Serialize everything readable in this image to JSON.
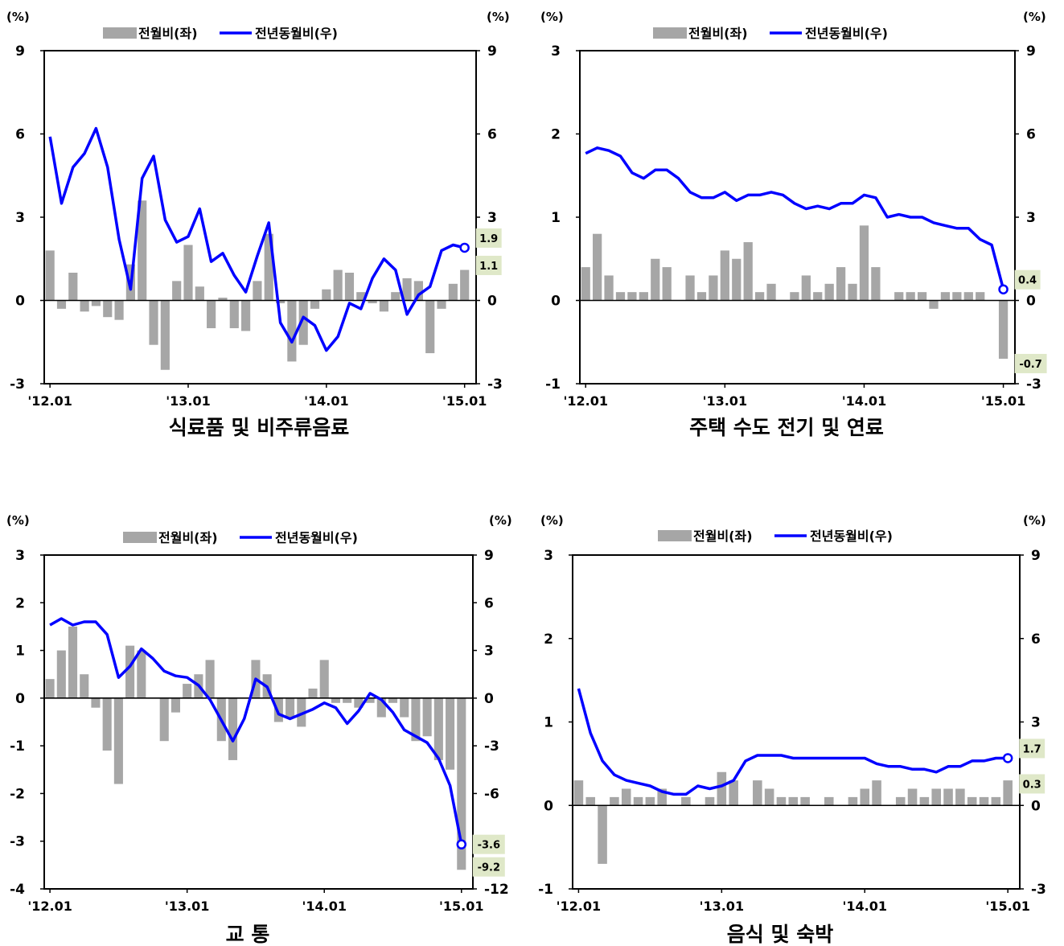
{
  "colors": {
    "bar": "#a6a6a6",
    "line": "#0000ff",
    "callout_bg": "#dfe8c8",
    "axis": "#000000"
  },
  "x_tick_labels": [
    "'12.01",
    "'13.01",
    "'14.01",
    "'15.01"
  ],
  "chart_data": [
    {
      "type": "bar",
      "title": "식료품 및 비주류음료",
      "left_unit": "(%)",
      "right_unit": "(%)",
      "legend": [
        {
          "label": "전월비(좌)",
          "kind": "bar"
        },
        {
          "label": "전년동월비(우)",
          "kind": "line"
        }
      ],
      "xlabels": [
        "'12.01",
        "'13.01",
        "'14.01",
        "'15.01"
      ],
      "left_ticks": [
        "9",
        "6",
        "3",
        "0",
        "-3"
      ],
      "right_ticks": [
        "9",
        "6",
        "3",
        "0",
        "-3"
      ],
      "ylim_left": [
        -3,
        9
      ],
      "ylim_right": [
        -3,
        9
      ],
      "series": [
        {
          "name": "전월비(좌)",
          "axis": "left",
          "values": [
            1.8,
            -0.3,
            1.0,
            -0.4,
            -0.2,
            -0.6,
            -0.7,
            1.3,
            3.6,
            -1.6,
            -2.5,
            0.7,
            2.0,
            0.5,
            -1.0,
            0.1,
            -1.0,
            -1.1,
            0.7,
            2.4,
            -0.1,
            -2.2,
            -1.6,
            -0.3,
            0.4,
            1.1,
            1.0,
            0.3,
            -0.1,
            -0.4,
            0.3,
            0.8,
            0.7,
            -1.9,
            -0.3,
            0.6,
            1.1
          ]
        },
        {
          "name": "전년동월비(우)",
          "axis": "right",
          "values": [
            5.9,
            3.5,
            4.8,
            5.3,
            6.2,
            4.8,
            2.2,
            0.4,
            4.4,
            5.2,
            2.9,
            2.1,
            2.3,
            3.3,
            1.4,
            1.7,
            0.9,
            0.3,
            1.6,
            2.8,
            -0.8,
            -1.5,
            -0.6,
            -0.9,
            -1.8,
            -1.3,
            -0.1,
            -0.3,
            0.8,
            1.5,
            1.1,
            -0.5,
            0.2,
            0.5,
            1.8,
            2.0,
            1.9
          ]
        }
      ],
      "callouts": [
        {
          "text": "1.9",
          "for": "line"
        },
        {
          "text": "1.1",
          "for": "bar"
        }
      ]
    },
    {
      "type": "bar",
      "title": "주택 수도 전기 및 연료",
      "left_unit": "(%)",
      "right_unit": "(%)",
      "legend": [
        {
          "label": "전월비(좌)",
          "kind": "bar"
        },
        {
          "label": "전년동월비(우)",
          "kind": "line"
        }
      ],
      "xlabels": [
        "'12.01",
        "'13.01",
        "'14.01",
        "'15.01"
      ],
      "left_ticks": [
        "3",
        "2",
        "1",
        "0",
        "-1"
      ],
      "right_ticks": [
        "9",
        "6",
        "3",
        "0",
        "-3"
      ],
      "ylim_left": [
        -1,
        3
      ],
      "ylim_right": [
        -3,
        9
      ],
      "series": [
        {
          "name": "전월비(좌)",
          "axis": "left",
          "values": [
            0.4,
            0.8,
            0.3,
            0.1,
            0.1,
            0.1,
            0.5,
            0.4,
            0.0,
            0.3,
            0.1,
            0.3,
            0.6,
            0.5,
            0.7,
            0.1,
            0.2,
            0.0,
            0.1,
            0.3,
            0.1,
            0.2,
            0.4,
            0.2,
            0.9,
            0.4,
            0.0,
            0.1,
            0.1,
            0.1,
            -0.1,
            0.1,
            0.1,
            0.1,
            0.1,
            0.0,
            -0.7
          ]
        },
        {
          "name": "전년동월비(우)",
          "axis": "right",
          "values": [
            5.3,
            5.5,
            5.4,
            5.2,
            4.6,
            4.4,
            4.7,
            4.7,
            4.4,
            3.9,
            3.7,
            3.7,
            3.9,
            3.6,
            3.8,
            3.8,
            3.9,
            3.8,
            3.5,
            3.3,
            3.4,
            3.3,
            3.5,
            3.5,
            3.8,
            3.7,
            3.0,
            3.1,
            3.0,
            3.0,
            2.8,
            2.7,
            2.6,
            2.6,
            2.2,
            2.0,
            0.4
          ]
        }
      ],
      "callouts": [
        {
          "text": "0.4",
          "for": "line"
        },
        {
          "text": "-0.7",
          "for": "bar"
        }
      ]
    },
    {
      "type": "bar",
      "title": "교          통",
      "left_unit": "(%)",
      "right_unit": "(%)",
      "legend": [
        {
          "label": "전월비(좌)",
          "kind": "bar"
        },
        {
          "label": "전년동월비(우)",
          "kind": "line"
        }
      ],
      "xlabels": [
        "'12.01",
        "'13.01",
        "'14.01",
        "'15.01"
      ],
      "left_ticks": [
        "3",
        "2",
        "1",
        "0",
        "-1",
        "-2",
        "-3",
        "-4"
      ],
      "right_ticks": [
        "9",
        "6",
        "3",
        "0",
        "-3",
        "-6",
        "-9",
        "-12"
      ],
      "ylim_left": [
        -4,
        3
      ],
      "ylim_right": [
        -12,
        9
      ],
      "series": [
        {
          "name": "전월비(좌)",
          "axis": "left",
          "values": [
            0.4,
            1.0,
            1.5,
            0.5,
            -0.2,
            -1.1,
            -1.8,
            1.1,
            1.0,
            0.0,
            -0.9,
            -0.3,
            0.3,
            0.5,
            0.8,
            -0.9,
            -1.3,
            0.0,
            0.8,
            0.5,
            -0.5,
            -0.4,
            -0.6,
            0.2,
            0.8,
            -0.1,
            -0.1,
            -0.2,
            -0.1,
            -0.4,
            -0.1,
            -0.4,
            -0.9,
            -0.8,
            -1.3,
            -1.5,
            -3.6
          ]
        },
        {
          "name": "전년동월비(우)",
          "axis": "right",
          "values": [
            4.6,
            5.0,
            4.6,
            4.8,
            4.8,
            4.0,
            1.3,
            2.0,
            3.1,
            2.5,
            1.7,
            1.4,
            1.3,
            0.8,
            -0.1,
            -1.4,
            -2.7,
            -1.3,
            1.2,
            0.7,
            -1.0,
            -1.3,
            -1.0,
            -0.7,
            -0.3,
            -0.6,
            -1.6,
            -0.8,
            0.3,
            -0.1,
            -0.9,
            -2.0,
            -2.4,
            -2.8,
            -3.8,
            -5.5,
            -9.2
          ]
        }
      ],
      "callouts": [
        {
          "text": "-3.6",
          "for": "bar"
        },
        {
          "text": "-9.2",
          "for": "line"
        }
      ]
    },
    {
      "type": "bar",
      "title": "음식 및 숙박",
      "left_unit": "(%)",
      "right_unit": "(%)",
      "legend": [
        {
          "label": "전월비(좌)",
          "kind": "bar"
        },
        {
          "label": "전년동월비(우)",
          "kind": "line"
        }
      ],
      "xlabels": [
        "'12.01",
        "'13.01",
        "'14.01",
        "'15.01"
      ],
      "left_ticks": [
        "3",
        "2",
        "1",
        "0",
        "-1"
      ],
      "right_ticks": [
        "9",
        "6",
        "3",
        "0",
        "-3"
      ],
      "ylim_left": [
        -1,
        3
      ],
      "ylim_right": [
        -3,
        9
      ],
      "series": [
        {
          "name": "전월비(좌)",
          "axis": "left",
          "values": [
            0.3,
            0.1,
            -0.7,
            0.1,
            0.2,
            0.1,
            0.1,
            0.2,
            0.0,
            0.1,
            0.0,
            0.1,
            0.4,
            0.3,
            0.0,
            0.3,
            0.2,
            0.1,
            0.1,
            0.1,
            0.0,
            0.1,
            0.0,
            0.1,
            0.2,
            0.3,
            0.0,
            0.1,
            0.2,
            0.1,
            0.2,
            0.2,
            0.2,
            0.1,
            0.1,
            0.1,
            0.3
          ]
        },
        {
          "name": "전년동월비(우)",
          "axis": "right",
          "values": [
            4.2,
            2.6,
            1.6,
            1.1,
            0.9,
            0.8,
            0.7,
            0.5,
            0.4,
            0.4,
            0.7,
            0.6,
            0.7,
            0.9,
            1.6,
            1.8,
            1.8,
            1.8,
            1.7,
            1.7,
            1.7,
            1.7,
            1.7,
            1.7,
            1.7,
            1.5,
            1.4,
            1.4,
            1.3,
            1.3,
            1.2,
            1.4,
            1.4,
            1.6,
            1.6,
            1.7,
            1.7
          ]
        }
      ],
      "callouts": [
        {
          "text": "1.7",
          "for": "line"
        },
        {
          "text": "0.3",
          "for": "bar"
        }
      ]
    }
  ]
}
